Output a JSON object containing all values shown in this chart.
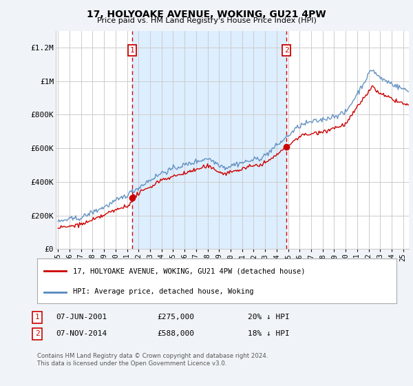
{
  "title": "17, HOLYOAKE AVENUE, WOKING, GU21 4PW",
  "subtitle": "Price paid vs. HM Land Registry's House Price Index (HPI)",
  "legend_line1": "17, HOLYOAKE AVENUE, WOKING, GU21 4PW (detached house)",
  "legend_line2": "HPI: Average price, detached house, Woking",
  "footnote": "Contains HM Land Registry data © Crown copyright and database right 2024.\nThis data is licensed under the Open Government Licence v3.0.",
  "sale1_date": "07-JUN-2001",
  "sale1_price": "£275,000",
  "sale1_hpi": "20% ↓ HPI",
  "sale2_date": "07-NOV-2014",
  "sale2_price": "£588,000",
  "sale2_hpi": "18% ↓ HPI",
  "sale1_x": 2001.44,
  "sale2_x": 2014.85,
  "sale1_price_val": 275000,
  "sale2_price_val": 588000,
  "ylim": [
    0,
    1300000
  ],
  "xlim_start": 1994.8,
  "xlim_end": 2025.5,
  "yticks": [
    0,
    200000,
    400000,
    600000,
    800000,
    1000000,
    1200000
  ],
  "ytick_labels": [
    "£0",
    "£200K",
    "£400K",
    "£600K",
    "£800K",
    "£1M",
    "£1.2M"
  ],
  "xticks": [
    1995,
    1996,
    1997,
    1998,
    1999,
    2000,
    2001,
    2002,
    2003,
    2004,
    2005,
    2006,
    2007,
    2008,
    2009,
    2010,
    2011,
    2012,
    2013,
    2014,
    2015,
    2016,
    2017,
    2018,
    2019,
    2020,
    2021,
    2022,
    2023,
    2024,
    2025
  ],
  "red_line_color": "#cc0000",
  "blue_line_color": "#5588bb",
  "shade_color": "#ddeeff",
  "vline_color": "#cc0000",
  "grid_color": "#cccccc",
  "background_color": "#f0f4f8",
  "plot_bg_color": "#ffffff",
  "label_box_color": "#cc0000"
}
